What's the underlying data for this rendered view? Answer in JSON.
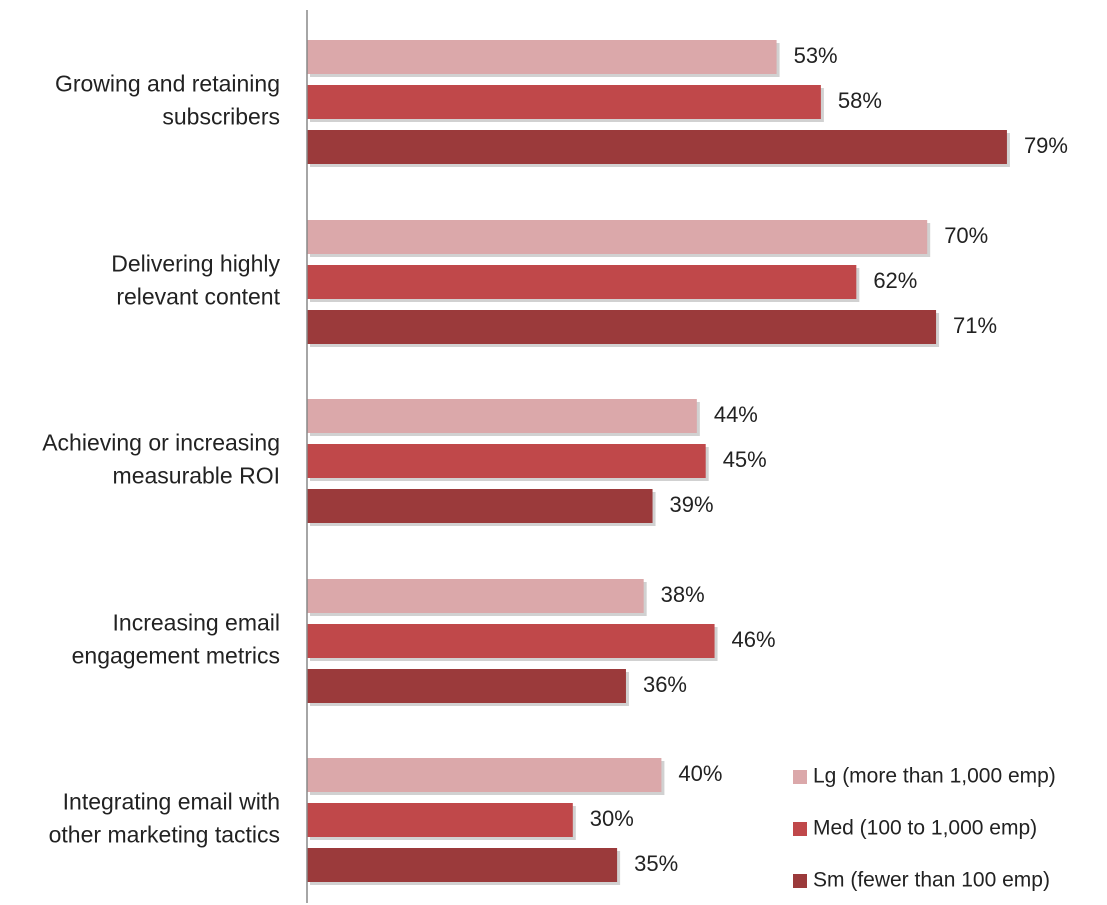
{
  "chart_data": {
    "type": "bar",
    "orientation": "horizontal",
    "categories": [
      [
        "Growing and retaining",
        "subscribers"
      ],
      [
        "Delivering highly",
        "relevant content"
      ],
      [
        "Achieving or increasing",
        "measurable ROI"
      ],
      [
        "Increasing email",
        "engagement metrics"
      ],
      [
        "Integrating email with",
        "other marketing tactics"
      ]
    ],
    "series": [
      {
        "name": "Lg (more than 1,000 emp)",
        "color": "#dba8aa",
        "values": [
          53,
          70,
          44,
          38,
          40
        ],
        "labels": [
          "53%",
          "70%",
          "44%",
          "38%",
          "40%"
        ]
      },
      {
        "name": "Med (100 to 1,000 emp)",
        "color": "#c0484a",
        "values": [
          58,
          62,
          45,
          46,
          30
        ],
        "labels": [
          "58%",
          "62%",
          "45%",
          "46%",
          "30%"
        ]
      },
      {
        "name": "Sm (fewer than 100 emp)",
        "color": "#9b3a3b",
        "values": [
          79,
          71,
          39,
          36,
          35
        ],
        "labels": [
          "79%",
          "71%",
          "39%",
          "36%",
          "35%"
        ]
      }
    ],
    "value_unit": "%",
    "xlim": [
      0,
      100
    ],
    "grid": false,
    "show_x_axis": false,
    "legend_position": "bottom-right"
  }
}
